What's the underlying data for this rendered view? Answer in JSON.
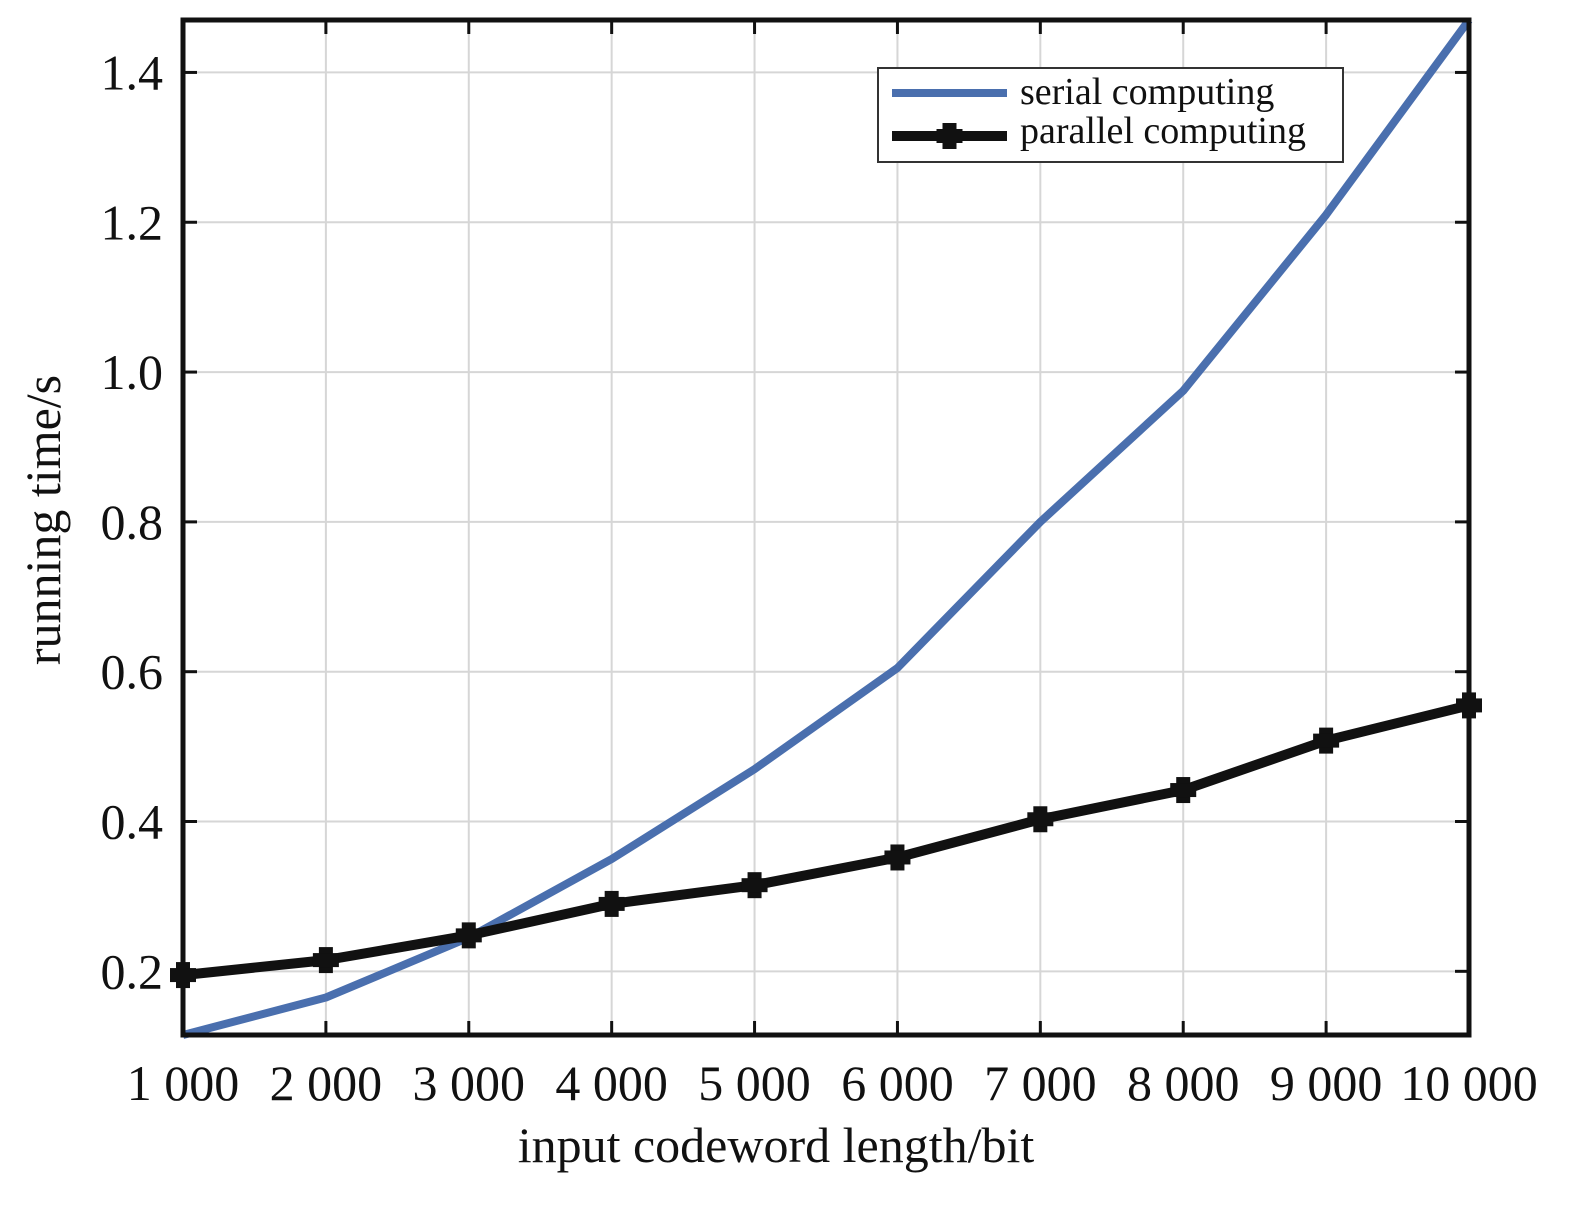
{
  "chart_data": {
    "type": "line",
    "title": "",
    "xlabel": "input codeword length/bit",
    "ylabel": "running time/s",
    "x": [
      1000,
      2000,
      3000,
      4000,
      5000,
      6000,
      7000,
      8000,
      9000,
      10000
    ],
    "x_tick_labels": [
      "1 000",
      "2 000",
      "3 000",
      "4 000",
      "5 000",
      "6 000",
      "7 000",
      "8 000",
      "9 000",
      "10 000"
    ],
    "xlim": [
      1000,
      10000
    ],
    "y_ticks": [
      0.2,
      0.4,
      0.6,
      0.8,
      1.0,
      1.2,
      1.4
    ],
    "y_tick_labels": [
      "0.2",
      "0.4",
      "0.6",
      "0.8",
      "1.0",
      "1.2",
      "1.4"
    ],
    "ylim": [
      0.115,
      1.47
    ],
    "grid": true,
    "legend_position": "top-right",
    "series": [
      {
        "name": "serial computing",
        "color": "#4a6fae",
        "marker": "none",
        "values": [
          0.115,
          0.165,
          0.245,
          0.35,
          0.47,
          0.605,
          0.8,
          0.975,
          1.21,
          1.47
        ]
      },
      {
        "name": "parallel computing",
        "color": "#111111",
        "marker": "plus",
        "values": [
          0.195,
          0.215,
          0.248,
          0.29,
          0.315,
          0.352,
          0.403,
          0.442,
          0.508,
          0.555
        ]
      }
    ]
  }
}
